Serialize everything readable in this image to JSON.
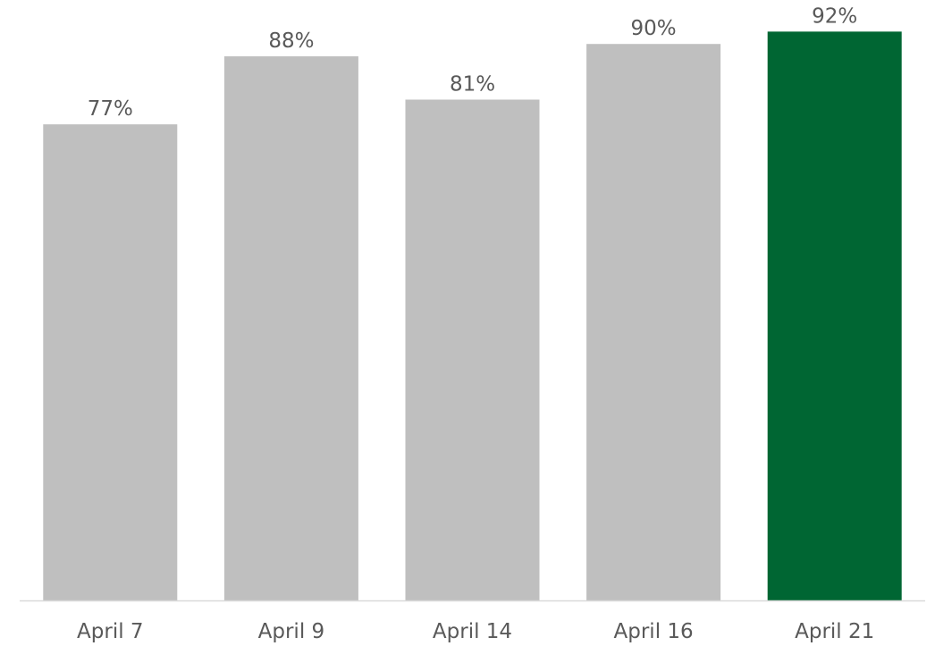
{
  "chart_data": {
    "type": "bar",
    "categories": [
      "April 7",
      "April 9",
      "April 14",
      "April 16",
      "April 21"
    ],
    "values": [
      77,
      88,
      81,
      90,
      92
    ],
    "value_labels": [
      "77%",
      "88%",
      "81%",
      "90%",
      "92%"
    ],
    "unit": "%",
    "title": "",
    "xlabel": "",
    "ylabel": "",
    "ylim": [
      0,
      100
    ],
    "grid": false,
    "legend": "none",
    "colors": {
      "default_bar": "#bfbfbf",
      "highlight_bar": "#006633",
      "label_text": "#595959",
      "axis_line": "#d9d9d9"
    },
    "highlight_index": 4
  }
}
